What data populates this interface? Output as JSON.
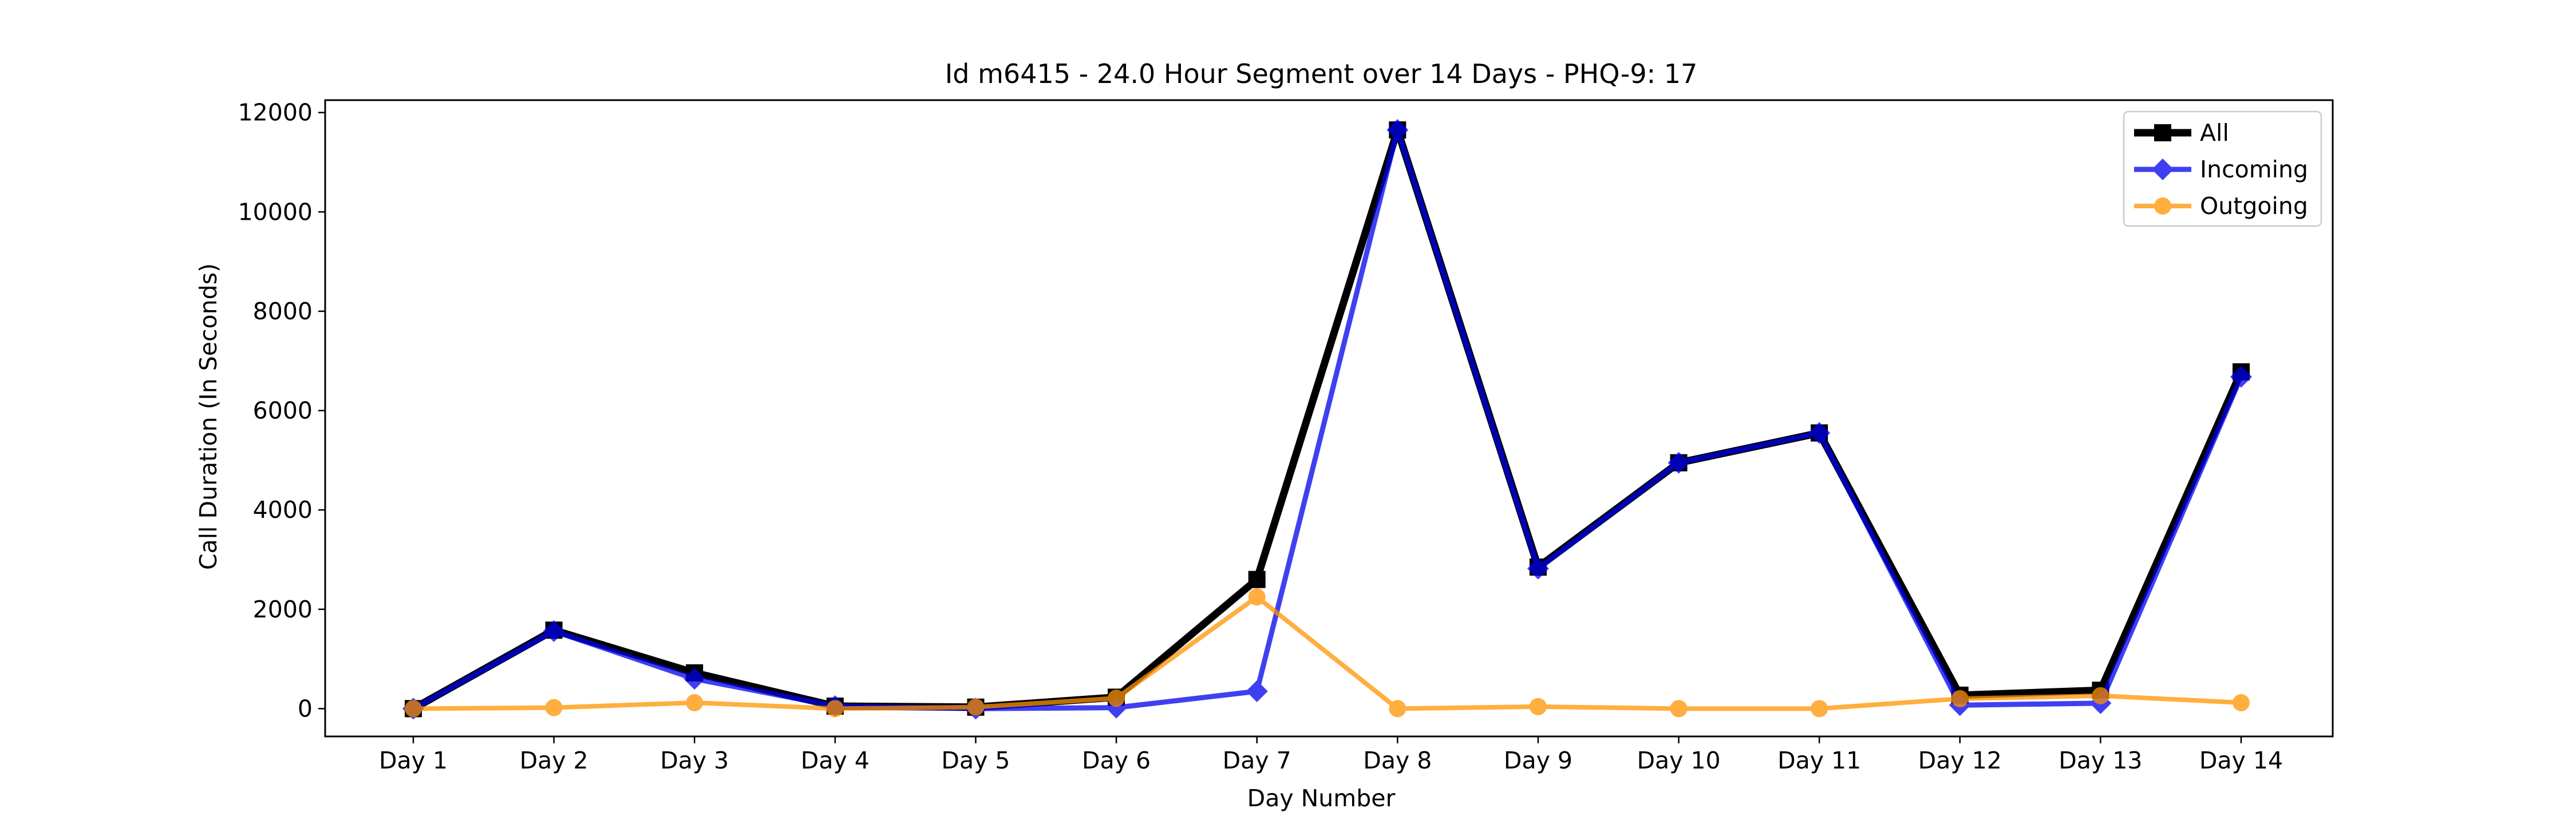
{
  "chart_data": {
    "type": "line",
    "title": "Id m6415 - 24.0 Hour Segment over 14 Days - PHQ-9: 17",
    "xlabel": "Day Number",
    "ylabel": "Call Duration (In Seconds)",
    "categories": [
      "Day 1",
      "Day 2",
      "Day 3",
      "Day 4",
      "Day 5",
      "Day 6",
      "Day 7",
      "Day 8",
      "Day 9",
      "Day 10",
      "Day 11",
      "Day 12",
      "Day 13",
      "Day 14"
    ],
    "ylim": [
      -560,
      12250
    ],
    "yticks": [
      0,
      2000,
      4000,
      6000,
      8000,
      10000,
      12000
    ],
    "ytick_labels": [
      "0",
      "2000",
      "4000",
      "6000",
      "8000",
      "10000",
      "12000"
    ],
    "grid": false,
    "legend_position": "top-right",
    "series": [
      {
        "name": "All",
        "color": "#000000",
        "marker": "square",
        "values": [
          0,
          1580,
          720,
          50,
          30,
          230,
          2600,
          11650,
          2850,
          4950,
          5550,
          270,
          370,
          6780
        ]
      },
      {
        "name": "Incoming",
        "color": "#0000ee",
        "marker": "diamond",
        "values": [
          0,
          1560,
          600,
          50,
          0,
          20,
          350,
          11650,
          2820,
          4950,
          5550,
          70,
          110,
          6680
        ]
      },
      {
        "name": "Outgoing",
        "color": "#ff9300",
        "marker": "circle",
        "values": [
          0,
          20,
          120,
          0,
          30,
          210,
          2250,
          0,
          40,
          0,
          0,
          200,
          260,
          120
        ]
      }
    ]
  }
}
